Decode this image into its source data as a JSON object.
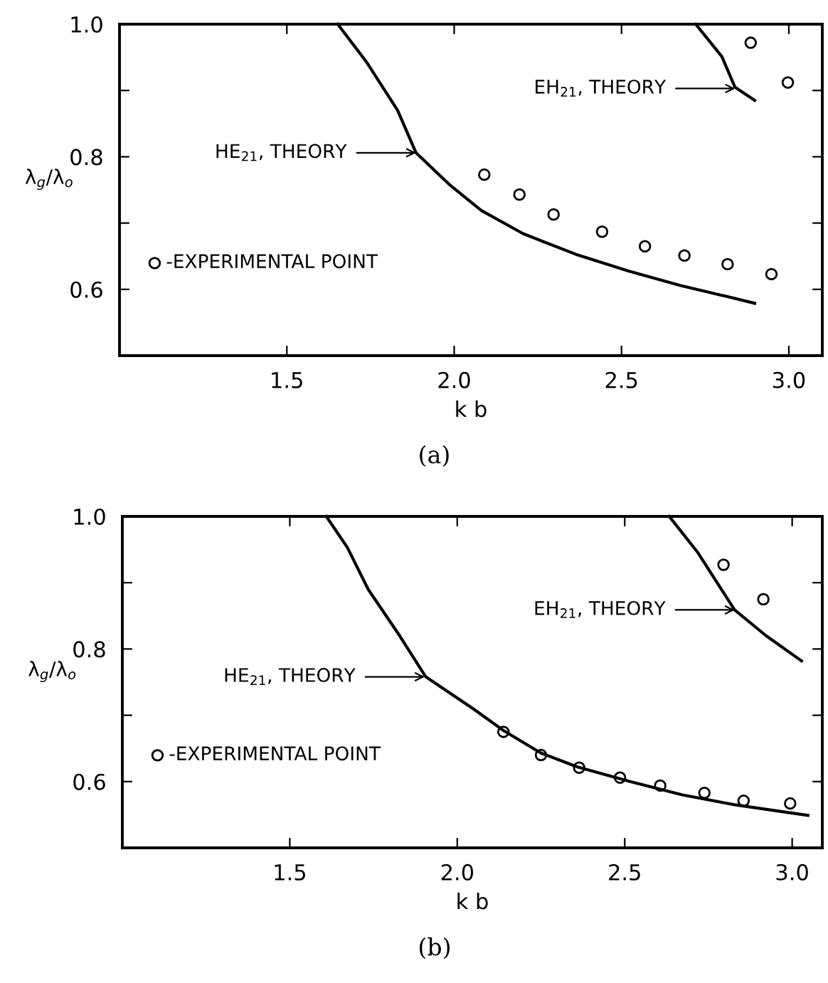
{
  "chart_data": [
    {
      "type": "line",
      "xlabel": "k b",
      "ylabel": "λ$_{g}$/λ$_{o}$",
      "xlim": [
        1.0,
        3.1
      ],
      "ylim": [
        0.5,
        1.0
      ],
      "xticks": [
        {
          "value": 1.5,
          "label": "1.5"
        },
        {
          "value": 2.0,
          "label": "2.0"
        },
        {
          "value": 2.5,
          "label": "2.5"
        },
        {
          "value": 3.0,
          "label": "3.0"
        }
      ],
      "yticks": [
        {
          "value": 0.6,
          "label": "0.6"
        },
        {
          "value": 0.7,
          "label": null
        },
        {
          "value": 0.8,
          "label": "0.8"
        },
        {
          "value": 0.9,
          "label": null
        },
        {
          "value": 1.0,
          "label": "1.0"
        }
      ],
      "grid": false,
      "legend": "left",
      "series": [
        {
          "color": "#000000",
          "x": [
            1.652,
            1.738,
            1.831,
            1.886,
            1.988,
            2.081,
            2.206,
            2.363,
            2.519,
            2.675,
            2.8,
            2.898
          ],
          "values": [
            1.0,
            0.943,
            0.87,
            0.806,
            0.757,
            0.719,
            0.684,
            0.653,
            0.628,
            0.606,
            0.591,
            0.579
          ]
        },
        {
          "color": "#000000",
          "x": [
            2.722,
            2.8,
            2.839,
            2.898
          ],
          "values": [
            1.0,
            0.951,
            0.905,
            0.885
          ]
        },
        {
          "type": "scatter",
          "name": "-EXPERIMENTAL POINT",
          "color": "#000000",
          "marker": "circle",
          "x": [
            2.09,
            2.195,
            2.297,
            2.442,
            2.57,
            2.688,
            2.817,
            2.948,
            2.886,
            2.997
          ],
          "values": [
            0.773,
            0.743,
            0.713,
            0.687,
            0.665,
            0.651,
            0.638,
            0.623,
            0.972,
            0.912
          ]
        }
      ],
      "annotations": [
        "HE$_{21}$, THEORY",
        "EH$_{21}$, THEORY",
        "(a)"
      ]
    },
    {
      "type": "line",
      "xlabel": "k b",
      "ylabel": "λ$_{g}$/λ$_{o}$",
      "xlim": [
        1.0,
        3.09
      ],
      "ylim": [
        0.5,
        1.0
      ],
      "xticks": [
        {
          "value": 1.5,
          "label": "1.5"
        },
        {
          "value": 2.0,
          "label": "2.0"
        },
        {
          "value": 2.5,
          "label": "2.5"
        },
        {
          "value": 3.0,
          "label": "3.0"
        }
      ],
      "yticks": [
        {
          "value": 0.6,
          "label": "0.6"
        },
        {
          "value": 0.7,
          "label": null
        },
        {
          "value": 0.8,
          "label": "0.8"
        },
        {
          "value": 0.9,
          "label": null
        },
        {
          "value": 1.0,
          "label": "1.0"
        }
      ],
      "grid": false,
      "legend": "left",
      "series": [
        {
          "color": "#000000",
          "x": [
            1.609,
            1.672,
            1.734,
            1.828,
            1.906,
            2.047,
            2.138,
            2.25,
            2.359,
            2.516,
            2.672,
            2.828,
            3.047
          ],
          "values": [
            1.0,
            0.953,
            0.89,
            0.82,
            0.758,
            0.71,
            0.677,
            0.643,
            0.622,
            0.6,
            0.58,
            0.565,
            0.549
          ]
        },
        {
          "color": "#000000",
          "x": [
            2.633,
            2.719,
            2.828,
            2.922,
            3.028
          ],
          "values": [
            1.0,
            0.945,
            0.859,
            0.82,
            0.782
          ]
        },
        {
          "type": "scatter",
          "name": "-EXPERIMENTAL POINT",
          "color": "#000000",
          "marker": "circle",
          "x": [
            2.138,
            2.25,
            2.364,
            2.486,
            2.606,
            2.738,
            2.855,
            2.994,
            2.795,
            2.914
          ],
          "values": [
            0.675,
            0.64,
            0.621,
            0.606,
            0.594,
            0.583,
            0.571,
            0.567,
            0.927,
            0.875
          ]
        }
      ],
      "annotations": [
        "HE$_{21}$, THEORY",
        "EH$_{21}$, THEORY",
        "(b)"
      ]
    }
  ]
}
